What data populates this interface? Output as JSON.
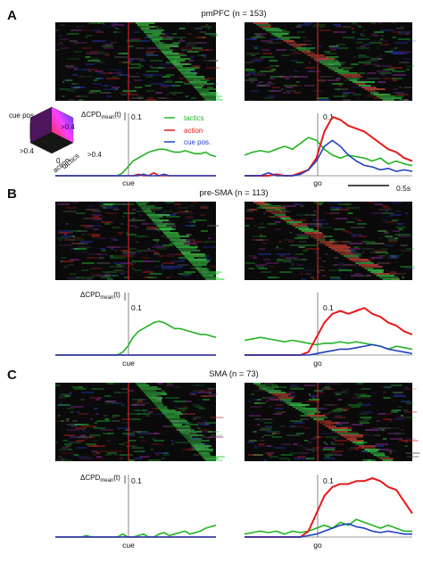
{
  "chart_data": {
    "type": "heatmap",
    "colors": {
      "tactics": "#22b422",
      "action": "#e41a1c",
      "cue_pos": "#1f3fbf",
      "marker": "#cc2222",
      "heat_bg": "#0a0a0a"
    },
    "legend": {
      "tactics": "tactics",
      "action": "action",
      "cue_pos": "cue pos."
    },
    "colorcube": {
      "top": "cue pos",
      "left": ">0.4",
      "right": ">0.4",
      "bottom_left": "action",
      "bottom_origin": "0",
      "bottom_right": "tactics",
      "face_value": ">0.4"
    },
    "y_axis_label": "ΔCPD",
    "y_axis_sub": "mean",
    "y_axis_suffix": "(t)",
    "y_tick": "0.1",
    "scale_bar": "0.5s",
    "panels": [
      {
        "label": "A",
        "title": "pmPFC (n = 153)",
        "cue_label": "cue",
        "go_label": "go",
        "series": [
          {
            "name": "tactics",
            "cue": [
              0,
              0,
              0,
              0,
              0,
              0,
              0,
              0,
              0,
              0,
              0,
              0,
              0,
              0.01,
              0.03,
              0.05,
              0.06,
              0.07,
              0.08,
              0.085,
              0.09,
              0.09,
              0.085,
              0.08,
              0.08,
              0.085,
              0.08,
              0.075,
              0.075,
              0.08,
              0.07,
              0.065
            ],
            "go": [
              0.07,
              0.08,
              0.085,
              0.08,
              0.09,
              0.1,
              0.09,
              0.11,
              0.13,
              0.12,
              0.09,
              0.07,
              0.06,
              0.07,
              0.065,
              0.06,
              0.05,
              0.06,
              0.04,
              0.05,
              0.04,
              0.035
            ]
          },
          {
            "name": "action",
            "cue": [
              0,
              0,
              0,
              0,
              0,
              0,
              0,
              0,
              0,
              0,
              0,
              0,
              0,
              0,
              0,
              0,
              0.005,
              0,
              0,
              0.01,
              0,
              0,
              0,
              0,
              0,
              0,
              0,
              0,
              0,
              0,
              0,
              0
            ],
            "go": [
              0,
              0,
              0,
              0,
              0.005,
              0,
              0,
              0.01,
              0.02,
              0.06,
              0.15,
              0.2,
              0.19,
              0.17,
              0.16,
              0.15,
              0.13,
              0.11,
              0.09,
              0.08,
              0.06,
              0.05
            ]
          },
          {
            "name": "cue pos.",
            "cue": [
              0,
              0,
              0,
              0,
              0,
              0,
              0,
              0,
              0,
              0,
              0,
              0,
              0,
              0,
              0,
              0,
              0,
              0.005,
              0,
              0,
              0,
              0.005,
              0,
              0,
              0,
              0,
              0,
              0,
              0,
              0,
              0,
              0
            ],
            "go": [
              0,
              0,
              0,
              0.01,
              0,
              0,
              0,
              0.005,
              0.02,
              0.05,
              0.1,
              0.12,
              0.1,
              0.07,
              0.05,
              0.035,
              0.03,
              0.02,
              0.025,
              0.015,
              0.02,
              0.015
            ]
          }
        ]
      },
      {
        "label": "B",
        "title": "pre-SMA (n = 113)",
        "cue_label": "cue",
        "go_label": "go",
        "series": [
          {
            "name": "tactics",
            "cue": [
              0,
              0,
              0,
              0,
              0,
              0,
              0,
              0,
              0,
              0,
              0,
              0,
              0,
              0.01,
              0.03,
              0.06,
              0.08,
              0.09,
              0.1,
              0.11,
              0.115,
              0.11,
              0.1,
              0.09,
              0.09,
              0.085,
              0.08,
              0.075,
              0.07,
              0.07,
              0.065,
              0.06
            ],
            "go": [
              0.05,
              0.055,
              0.06,
              0.055,
              0.05,
              0.045,
              0.05,
              0.045,
              0.04,
              0.035,
              0.04,
              0.04,
              0.045,
              0.04,
              0.045,
              0.04,
              0.035,
              0.03,
              0.02,
              0.03,
              0.025,
              0.02
            ]
          },
          {
            "name": "action",
            "cue": [
              0,
              0,
              0,
              0,
              0,
              0,
              0,
              0,
              0,
              0,
              0,
              0,
              0,
              0,
              0,
              0,
              0,
              0,
              0,
              0,
              0,
              0,
              0,
              0,
              0,
              0,
              0,
              0,
              0,
              0,
              0,
              0
            ],
            "go": [
              0,
              0,
              0,
              0,
              0,
              0,
              0,
              0,
              0.01,
              0.06,
              0.11,
              0.14,
              0.15,
              0.14,
              0.15,
              0.16,
              0.14,
              0.13,
              0.11,
              0.1,
              0.08,
              0.07
            ]
          },
          {
            "name": "cue pos.",
            "cue": [
              0,
              0,
              0,
              0,
              0,
              0,
              0,
              0,
              0,
              0,
              0,
              0,
              0,
              0,
              0,
              0,
              0,
              0,
              0,
              0,
              0,
              0,
              0,
              0,
              0,
              0,
              0,
              0,
              0,
              0,
              0,
              0
            ],
            "go": [
              0,
              0,
              0,
              0,
              0,
              0,
              0,
              0,
              0,
              0.005,
              0.01,
              0.015,
              0.02,
              0.02,
              0.025,
              0.03,
              0.035,
              0.03,
              0.02,
              0.015,
              0.01,
              0.005
            ]
          }
        ]
      },
      {
        "label": "C",
        "title": "SMA (n = 73)",
        "cue_label": "cue",
        "go_label": "go",
        "series": [
          {
            "name": "tactics",
            "cue": [
              0,
              0,
              0,
              0,
              0,
              0,
              0.005,
              0,
              0,
              0,
              0,
              0,
              0,
              0.01,
              0,
              0,
              0.005,
              0.01,
              0,
              0,
              0.01,
              0.015,
              0.005,
              0.01,
              0.015,
              0.02,
              0.01,
              0.015,
              0.02,
              0.03,
              0.035,
              0.04
            ],
            "go": [
              0.01,
              0.015,
              0.02,
              0.015,
              0.02,
              0.01,
              0.02,
              0.015,
              0.02,
              0.03,
              0.04,
              0.03,
              0.05,
              0.04,
              0.06,
              0.05,
              0.04,
              0.03,
              0.04,
              0.03,
              0.02,
              0.02
            ]
          },
          {
            "name": "action",
            "cue": [
              0,
              0,
              0,
              0,
              0,
              0,
              0,
              0,
              0,
              0,
              0,
              0,
              0,
              0,
              0,
              0,
              0,
              0,
              0,
              0,
              0,
              0,
              0,
              0,
              0,
              0,
              0,
              0,
              0,
              0,
              0,
              0
            ],
            "go": [
              0,
              0,
              0,
              0,
              0,
              0,
              0,
              0,
              0.02,
              0.08,
              0.14,
              0.17,
              0.18,
              0.18,
              0.19,
              0.19,
              0.2,
              0.19,
              0.17,
              0.16,
              0.12,
              0.08
            ]
          },
          {
            "name": "cue pos.",
            "cue": [
              0,
              0,
              0,
              0,
              0,
              0,
              0,
              0,
              0,
              0,
              0,
              0,
              0,
              0,
              0,
              0,
              0,
              0,
              0,
              0,
              0,
              0,
              0,
              0,
              0,
              0,
              0,
              0,
              0,
              0,
              0,
              0
            ],
            "go": [
              0,
              0,
              0,
              0,
              0,
              0,
              0,
              0,
              0.005,
              0.01,
              0.02,
              0.03,
              0.04,
              0.045,
              0.035,
              0.03,
              0.02,
              0.015,
              0.02,
              0.015,
              0.01,
              0.01
            ]
          }
        ]
      }
    ]
  }
}
